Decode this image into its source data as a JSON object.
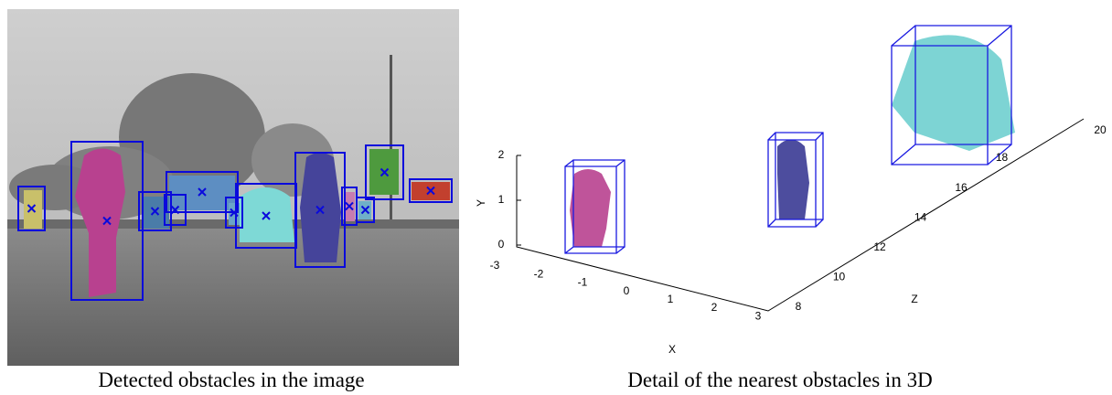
{
  "figure_left": {
    "caption": "Detected obstacles in the image"
  },
  "figure_right": {
    "caption": "Detail of the nearest obstacles in 3D",
    "x_label": "X",
    "y_label": "Y",
    "z_label": "Z",
    "x_ticks": [
      "-3",
      "-2",
      "-1",
      "0",
      "1",
      "2",
      "3"
    ],
    "y_ticks": [
      "2",
      "1",
      "0"
    ],
    "z_ticks": [
      "8",
      "10",
      "12",
      "14",
      "16",
      "18",
      "20"
    ]
  }
}
